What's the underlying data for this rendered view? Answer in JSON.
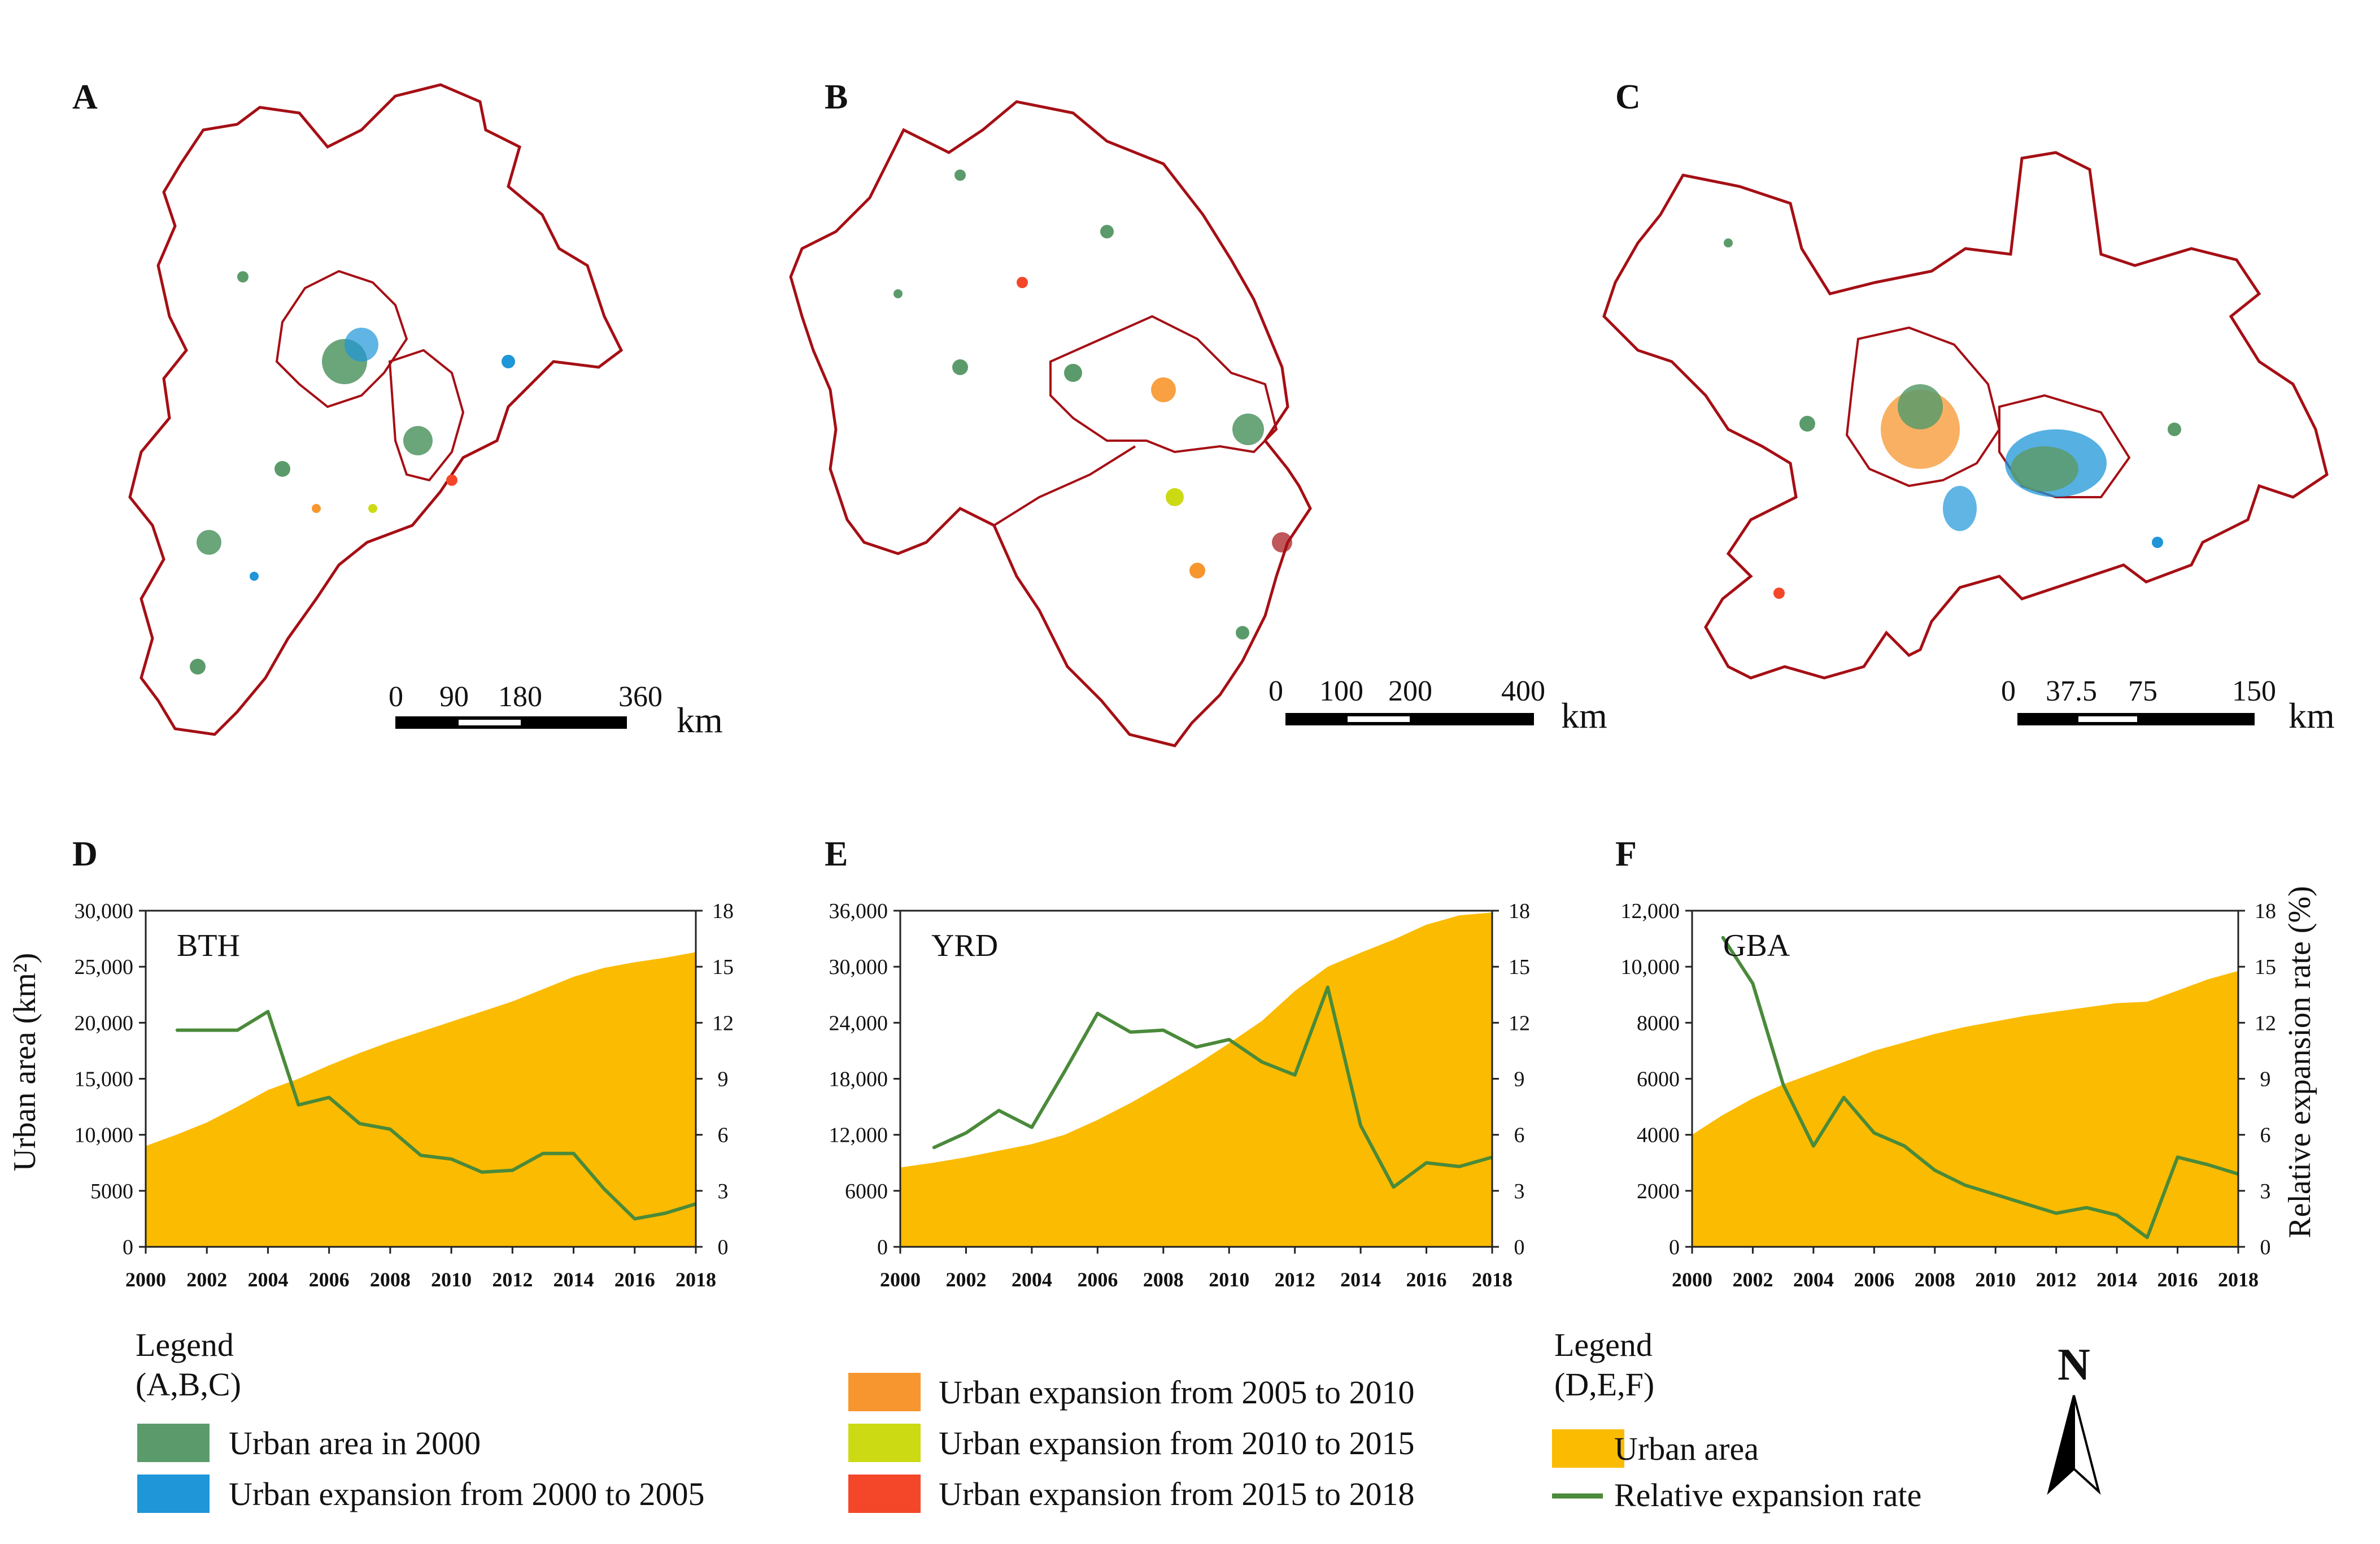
{
  "panels": {
    "map_a": "A",
    "map_b": "B",
    "map_c": "C",
    "chart_d": "D",
    "chart_e": "E",
    "chart_f": "F"
  },
  "scalebars": {
    "a": {
      "ticks": [
        "0",
        "90",
        "180",
        "360"
      ],
      "unit": "km"
    },
    "b": {
      "ticks": [
        "0",
        "100",
        "200",
        "400"
      ],
      "unit": "km"
    },
    "c": {
      "ticks": [
        "0",
        "37.5",
        "75",
        "150"
      ],
      "unit": "km"
    }
  },
  "colors": {
    "urban_area_fill": "#FBBB00",
    "rate_line": "#4A8A3A",
    "boundary": "#A50F15",
    "urban_2000": "#5B9B6B",
    "exp_2000_2005": "#1E96D8",
    "exp_2005_2010": "#F7962E",
    "exp_2010_2015": "#CCDA14",
    "exp_2015_2018": "#F4472A"
  },
  "chart_data": [
    {
      "type": "area+line",
      "panel": "D",
      "region_label": "BTH",
      "x": [
        2000,
        2001,
        2002,
        2003,
        2004,
        2005,
        2006,
        2007,
        2008,
        2009,
        2010,
        2011,
        2012,
        2013,
        2014,
        2015,
        2016,
        2017,
        2018
      ],
      "x_ticks": [
        "2000",
        "2002",
        "2004",
        "2006",
        "2008",
        "2010",
        "2012",
        "2014",
        "2016",
        "2018"
      ],
      "series": [
        {
          "name": "Urban area",
          "axis": "left",
          "kind": "area",
          "values": [
            9000,
            10000,
            11100,
            12500,
            14000,
            15000,
            16200,
            17300,
            18300,
            19200,
            20100,
            21000,
            21900,
            23000,
            24100,
            24900,
            25400,
            25800,
            26300
          ]
        },
        {
          "name": "Relative expansion rate",
          "axis": "right",
          "kind": "line",
          "values": [
            null,
            11.6,
            11.6,
            11.6,
            12.6,
            7.6,
            8.0,
            6.6,
            6.3,
            4.9,
            4.7,
            4.0,
            4.1,
            5.0,
            5.0,
            3.1,
            1.5,
            1.8,
            2.3
          ]
        }
      ],
      "ylim_left": [
        0,
        30000
      ],
      "ylim_right": [
        0,
        18
      ],
      "left_ticks": [
        "0",
        "5000",
        "10,000",
        "15,000",
        "20,000",
        "25,000",
        "30,000"
      ],
      "right_ticks": [
        "0",
        "3",
        "6",
        "9",
        "12",
        "15",
        "18"
      ],
      "ylabel": "Urban area (km²)",
      "ylabel_right": ""
    },
    {
      "type": "area+line",
      "panel": "E",
      "region_label": "YRD",
      "x": [
        2000,
        2001,
        2002,
        2003,
        2004,
        2005,
        2006,
        2007,
        2008,
        2009,
        2010,
        2011,
        2012,
        2013,
        2014,
        2015,
        2016,
        2017,
        2018
      ],
      "x_ticks": [
        "2000",
        "2002",
        "2004",
        "2006",
        "2008",
        "2010",
        "2012",
        "2014",
        "2016",
        "2018"
      ],
      "series": [
        {
          "name": "Urban area",
          "axis": "left",
          "kind": "area",
          "values": [
            8500,
            9000,
            9600,
            10300,
            11000,
            12000,
            13600,
            15400,
            17400,
            19500,
            21800,
            24200,
            27400,
            30000,
            31500,
            32900,
            34500,
            35500,
            35800
          ]
        },
        {
          "name": "Relative expansion rate",
          "axis": "right",
          "kind": "line",
          "values": [
            null,
            5.3,
            6.1,
            7.3,
            6.4,
            9.4,
            12.5,
            11.5,
            11.6,
            10.7,
            11.1,
            9.9,
            9.2,
            13.9,
            6.5,
            3.2,
            4.5,
            4.3,
            4.8
          ]
        }
      ],
      "ylim_left": [
        0,
        36000
      ],
      "ylim_right": [
        0,
        18
      ],
      "left_ticks": [
        "0",
        "6000",
        "12,000",
        "18,000",
        "24,000",
        "30,000",
        "36,000"
      ],
      "right_ticks": [
        "0",
        "3",
        "6",
        "9",
        "12",
        "15",
        "18"
      ],
      "ylabel": "",
      "ylabel_right": ""
    },
    {
      "type": "area+line",
      "panel": "F",
      "region_label": "GBA",
      "x": [
        2000,
        2001,
        2002,
        2003,
        2004,
        2005,
        2006,
        2007,
        2008,
        2009,
        2010,
        2011,
        2012,
        2013,
        2014,
        2015,
        2016,
        2017,
        2018
      ],
      "x_ticks": [
        "2000",
        "2002",
        "2004",
        "2006",
        "2008",
        "2010",
        "2012",
        "2014",
        "2016",
        "2018"
      ],
      "series": [
        {
          "name": "Urban area",
          "axis": "left",
          "kind": "area",
          "values": [
            4000,
            4700,
            5300,
            5800,
            6200,
            6600,
            7000,
            7300,
            7600,
            7850,
            8050,
            8250,
            8400,
            8550,
            8700,
            8750,
            9150,
            9550,
            9850
          ]
        },
        {
          "name": "Relative expansion rate",
          "axis": "right",
          "kind": "line",
          "values": [
            null,
            16.6,
            14.1,
            8.7,
            5.4,
            8.0,
            6.1,
            5.4,
            4.1,
            3.3,
            2.8,
            2.3,
            1.8,
            2.1,
            1.7,
            0.5,
            4.8,
            4.4,
            3.9
          ]
        }
      ],
      "ylim_left": [
        0,
        12000
      ],
      "ylim_right": [
        0,
        18
      ],
      "left_ticks": [
        "0",
        "2000",
        "4000",
        "6000",
        "8000",
        "10,000",
        "12,000"
      ],
      "right_ticks": [
        "0",
        "3",
        "6",
        "9",
        "12",
        "15",
        "18"
      ],
      "ylabel": "",
      "ylabel_right": "Relative expansion rate (%)"
    }
  ],
  "legend_maps": {
    "title_line1": "Legend",
    "title_line2": "(A,B,C)",
    "items": [
      "Urban area in 2000",
      "Urban expansion from 2000 to 2005",
      "Urban expansion from 2005 to 2010",
      "Urban expansion from 2010 to 2015",
      "Urban expansion from 2015 to 2018"
    ]
  },
  "legend_charts": {
    "title_line1": "Legend",
    "title_line2": "(D,E,F)",
    "items": [
      "Urban area",
      "Relative expansion rate"
    ]
  },
  "north_arrow": {
    "label": "N"
  }
}
